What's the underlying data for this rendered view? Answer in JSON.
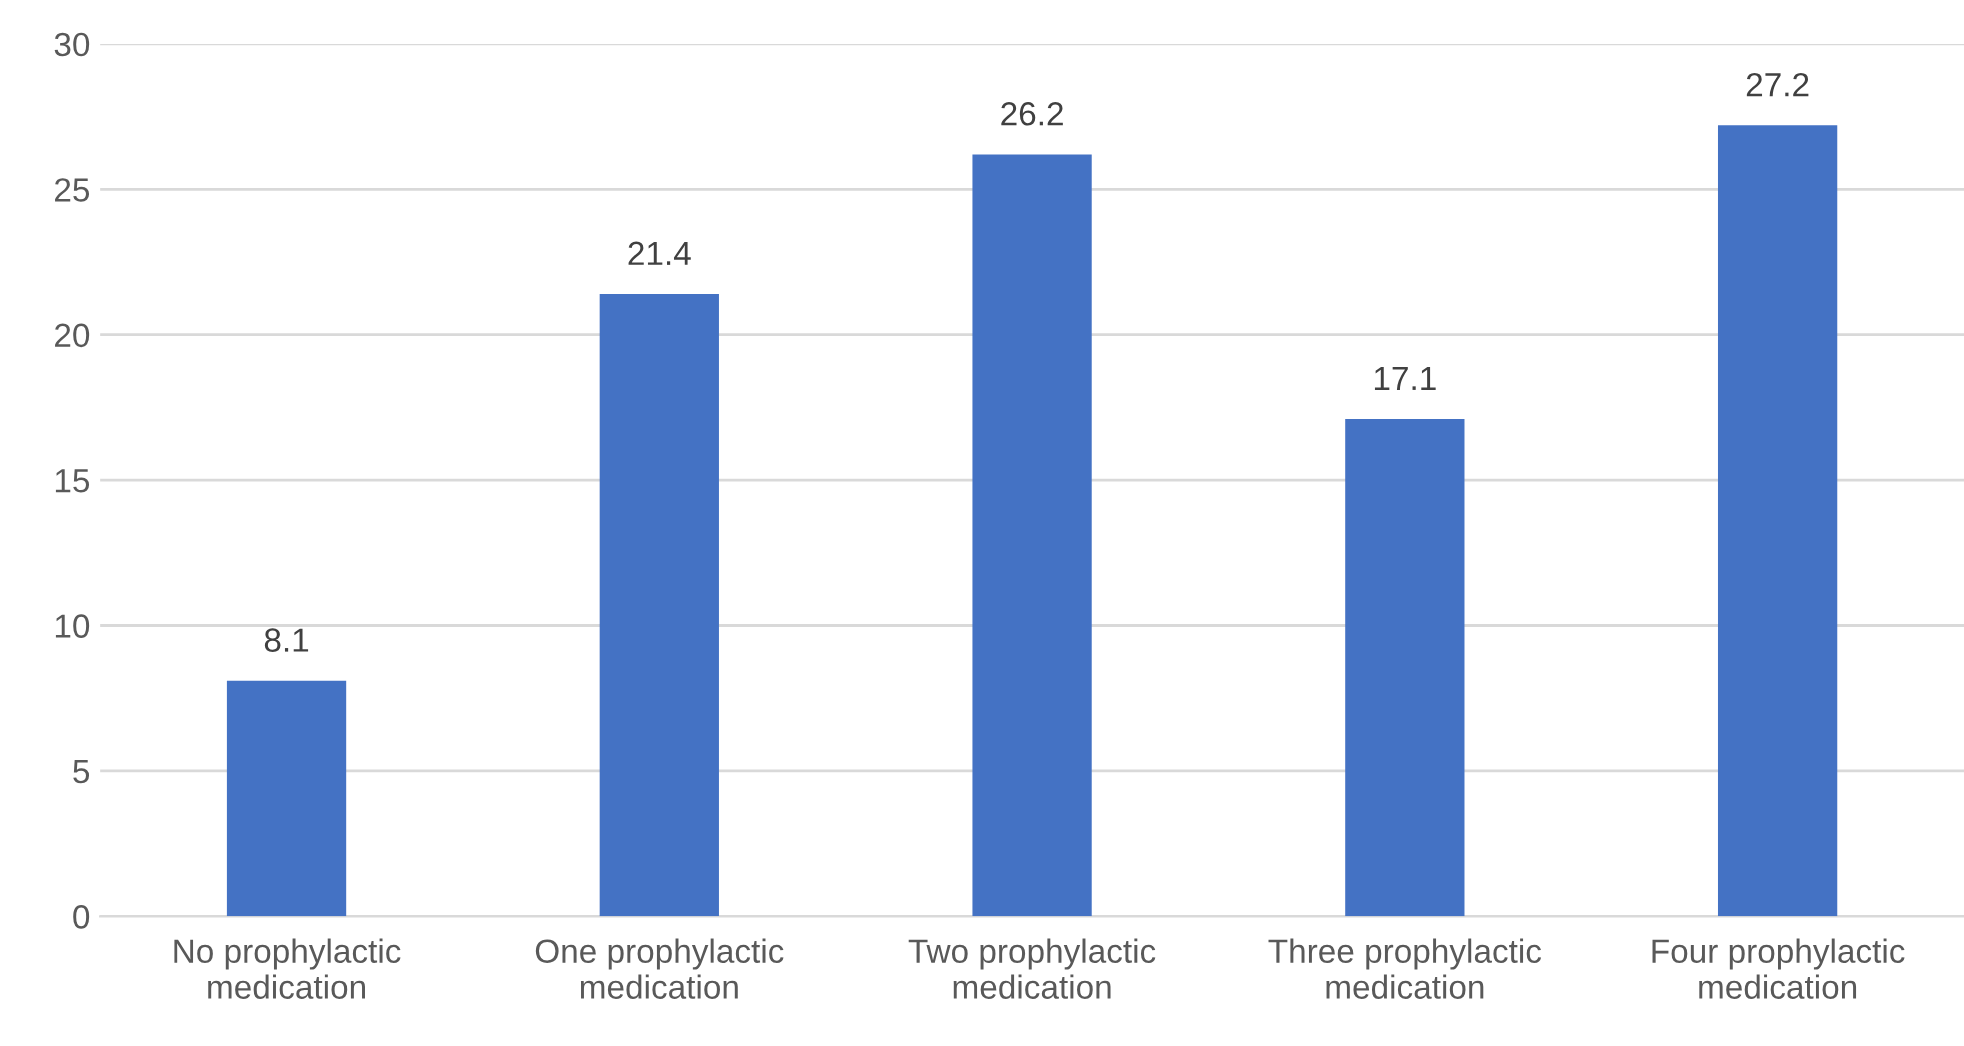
{
  "chart_data": {
    "type": "bar",
    "categories": [
      "No prophylactic\nmedication",
      "One prophylactic\nmedication",
      "Two prophylactic\nmedication",
      "Three prophylactic\nmedication",
      "Four prophylactic\nmedication"
    ],
    "values": [
      8.1,
      21.4,
      26.2,
      17.1,
      27.2
    ],
    "color": "#4472c4",
    "ylim": [
      0,
      30
    ],
    "yticks": [
      0,
      5,
      10,
      15,
      20,
      25,
      30
    ],
    "grid": "y",
    "data_labels": true
  }
}
